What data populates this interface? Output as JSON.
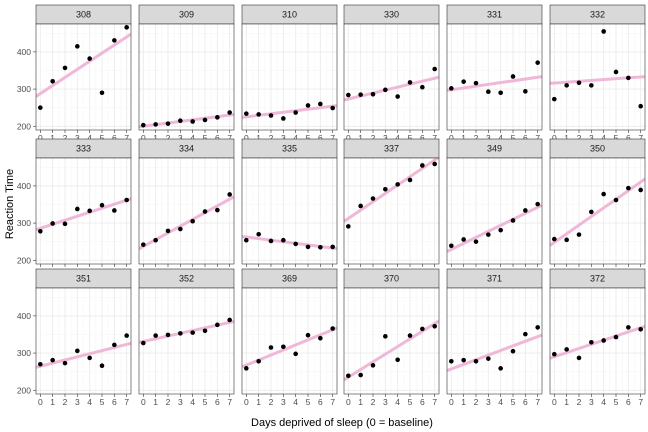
{
  "chart_data": {
    "type": "scatter",
    "xlabel": "Days deprived of sleep (0 = baseline)",
    "ylabel": "Reaction Time",
    "xlim": [
      -0.35,
      7.35
    ],
    "ylim": [
      190,
      475
    ],
    "x_ticks": [
      0,
      1,
      2,
      3,
      4,
      5,
      6,
      7
    ],
    "y_ticks": [
      200,
      300,
      400
    ],
    "grid": true,
    "layout": {
      "rows": 3,
      "cols": 6
    },
    "colors": {
      "point": "#000000",
      "fit": "#f0b8d8",
      "strip": "#d9d9d9",
      "strip_border": "#333333",
      "panel_border": "#333333",
      "grid_major": "#ebebeb",
      "grid_minor": "#f5f5f5"
    },
    "panels": [
      {
        "label": "308",
        "x": [
          0,
          1,
          2,
          3,
          4,
          5,
          6,
          7
        ],
        "y": [
          250,
          321,
          357,
          415,
          382,
          290,
          431,
          466
        ]
      },
      {
        "label": "309",
        "x": [
          0,
          1,
          2,
          3,
          4,
          5,
          6,
          7
        ],
        "y": [
          203,
          205,
          207,
          215,
          213,
          217,
          224,
          237
        ]
      },
      {
        "label": "310",
        "x": [
          0,
          1,
          2,
          3,
          4,
          5,
          6,
          7
        ],
        "y": [
          234,
          232,
          229,
          221,
          237,
          256,
          260,
          249
        ]
      },
      {
        "label": "330",
        "x": [
          0,
          1,
          2,
          3,
          4,
          5,
          6,
          7
        ],
        "y": [
          284,
          285,
          286,
          298,
          280,
          318,
          305,
          354
        ]
      },
      {
        "label": "331",
        "x": [
          0,
          1,
          2,
          3,
          4,
          5,
          6,
          7
        ],
        "y": [
          302,
          320,
          316,
          293,
          290,
          334,
          294,
          371
        ]
      },
      {
        "label": "332",
        "x": [
          0,
          1,
          2,
          3,
          4,
          5,
          6,
          7
        ],
        "y": [
          273,
          310,
          317,
          310,
          455,
          346,
          330,
          254
        ]
      },
      {
        "label": "333",
        "x": [
          0,
          1,
          2,
          3,
          4,
          5,
          6,
          7
        ],
        "y": [
          278,
          299,
          298,
          338,
          333,
          348,
          334,
          362
        ]
      },
      {
        "label": "334",
        "x": [
          0,
          1,
          2,
          3,
          4,
          5,
          6,
          7
        ],
        "y": [
          242,
          254,
          279,
          284,
          305,
          331,
          335,
          377
        ]
      },
      {
        "label": "335",
        "x": [
          0,
          1,
          2,
          3,
          4,
          5,
          6,
          7
        ],
        "y": [
          254,
          270,
          252,
          254,
          244,
          236,
          235,
          236
        ]
      },
      {
        "label": "337",
        "x": [
          0,
          1,
          2,
          3,
          4,
          5,
          6,
          7
        ],
        "y": [
          291,
          346,
          366,
          391,
          404,
          416,
          455,
          459
        ]
      },
      {
        "label": "349",
        "x": [
          0,
          1,
          2,
          3,
          4,
          5,
          6,
          7
        ],
        "y": [
          239,
          256,
          250,
          269,
          281,
          307,
          334,
          351
        ]
      },
      {
        "label": "350",
        "x": [
          0,
          1,
          2,
          3,
          4,
          5,
          6,
          7
        ],
        "y": [
          257,
          255,
          269,
          330,
          378,
          362,
          394,
          389
        ]
      },
      {
        "label": "351",
        "x": [
          0,
          1,
          2,
          3,
          4,
          5,
          6,
          7
        ],
        "y": [
          270,
          281,
          273,
          306,
          287,
          266,
          322,
          347
        ]
      },
      {
        "label": "352",
        "x": [
          0,
          1,
          2,
          3,
          4,
          5,
          6,
          7
        ],
        "y": [
          327,
          347,
          349,
          353,
          355,
          360,
          376,
          389
        ]
      },
      {
        "label": "369",
        "x": [
          0,
          1,
          2,
          3,
          4,
          5,
          6,
          7
        ],
        "y": [
          259,
          278,
          315,
          317,
          298,
          348,
          340,
          366
        ]
      },
      {
        "label": "370",
        "x": [
          0,
          1,
          2,
          3,
          4,
          5,
          6,
          7
        ],
        "y": [
          239,
          241,
          267,
          345,
          282,
          347,
          365,
          372
        ]
      },
      {
        "label": "371",
        "x": [
          0,
          1,
          2,
          3,
          4,
          5,
          6,
          7
        ],
        "y": [
          278,
          281,
          278,
          285,
          259,
          305,
          351,
          369
        ]
      },
      {
        "label": "372",
        "x": [
          0,
          1,
          2,
          3,
          4,
          5,
          6,
          7
        ],
        "y": [
          297,
          310,
          287,
          329,
          334,
          343,
          369,
          364
        ]
      }
    ]
  }
}
